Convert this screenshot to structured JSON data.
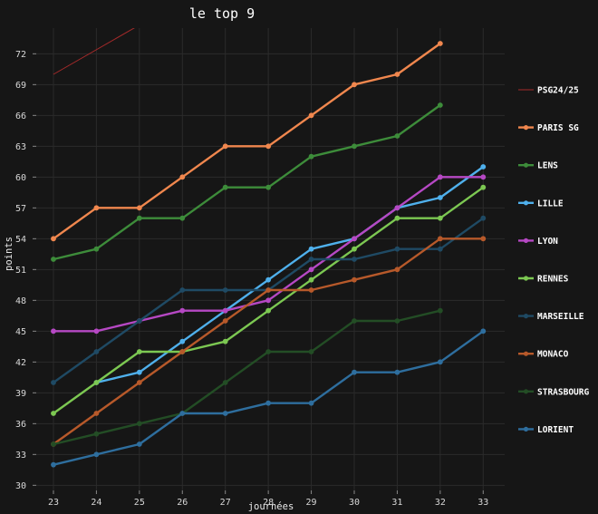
{
  "chart_data": {
    "type": "line",
    "title": "le top 9",
    "xlabel": "journées",
    "ylabel": "points",
    "x": [
      23,
      24,
      25,
      26,
      27,
      28,
      29,
      30,
      31,
      32,
      33
    ],
    "xticks": [
      "23",
      "24",
      "25",
      "26",
      "27",
      "28",
      "29",
      "30",
      "31",
      "32",
      "33"
    ],
    "yticks": [
      "30",
      "33",
      "36",
      "39",
      "42",
      "45",
      "48",
      "51",
      "54",
      "57",
      "60",
      "63",
      "66",
      "69",
      "72"
    ],
    "xlim": [
      22.6,
      33.5
    ],
    "ylim": [
      29.5,
      74.5
    ],
    "grid": true,
    "legend_position": "right",
    "background": "#161616",
    "grid_color": "#2b2b2b",
    "series": [
      {
        "name": "PSG24/25",
        "color": "#a52a2a",
        "markers": false,
        "x": [
          23,
          33
        ],
        "values": [
          70,
          94
        ]
      },
      {
        "name": "PARIS SG",
        "color": "#f0874e",
        "markers": true,
        "x": [
          23,
          24,
          25,
          26,
          27,
          28,
          29,
          30,
          31,
          32
        ],
        "values": [
          54,
          57,
          57,
          60,
          63,
          63,
          66,
          69,
          70,
          73
        ]
      },
      {
        "name": "LENS",
        "color": "#3d8c3a",
        "markers": true,
        "x": [
          23,
          24,
          25,
          26,
          27,
          28,
          29,
          30,
          31,
          32
        ],
        "values": [
          52,
          53,
          56,
          56,
          59,
          59,
          62,
          63,
          64,
          67
        ]
      },
      {
        "name": "LILLE",
        "color": "#4fb0ec",
        "markers": true,
        "x": [
          24,
          25,
          26,
          27,
          28,
          29,
          30,
          31,
          32,
          33
        ],
        "values": [
          40,
          41,
          44,
          47,
          50,
          53,
          54,
          57,
          58,
          61
        ]
      },
      {
        "name": "LYON",
        "color": "#b648c4",
        "markers": true,
        "x": [
          23,
          24,
          25,
          26,
          27,
          28,
          29,
          30,
          31,
          32,
          33
        ],
        "values": [
          45,
          45,
          46,
          47,
          47,
          48,
          51,
          54,
          57,
          60,
          60
        ]
      },
      {
        "name": "RENNES",
        "color": "#7cc852",
        "markers": true,
        "x": [
          23,
          24,
          25,
          26,
          27,
          28,
          29,
          30,
          31,
          32,
          33
        ],
        "values": [
          37,
          40,
          43,
          43,
          44,
          47,
          50,
          53,
          56,
          56,
          59
        ]
      },
      {
        "name": "MARSEILLE",
        "color": "#1f4a64",
        "markers": true,
        "x": [
          23,
          24,
          25,
          26,
          27,
          28,
          29,
          30,
          31,
          32,
          33
        ],
        "values": [
          40,
          43,
          46,
          49,
          49,
          49,
          52,
          52,
          53,
          53,
          56
        ]
      },
      {
        "name": "MONACO",
        "color": "#b7592a",
        "markers": true,
        "x": [
          23,
          24,
          25,
          26,
          27,
          28,
          29,
          30,
          31,
          32,
          33
        ],
        "values": [
          34,
          37,
          40,
          43,
          46,
          49,
          49,
          50,
          51,
          54,
          54
        ]
      },
      {
        "name": "STRASBOURG",
        "color": "#234d25",
        "markers": true,
        "x": [
          23,
          24,
          25,
          26,
          27,
          28,
          29,
          30,
          31,
          32
        ],
        "values": [
          34,
          35,
          36,
          37,
          40,
          43,
          43,
          46,
          46,
          47
        ]
      },
      {
        "name": "LORIENT",
        "color": "#2e6e9e",
        "markers": true,
        "x": [
          23,
          24,
          25,
          26,
          27,
          28,
          29,
          30,
          31,
          32,
          33
        ],
        "values": [
          32,
          33,
          34,
          37,
          37,
          38,
          38,
          41,
          41,
          42,
          45
        ]
      }
    ]
  }
}
